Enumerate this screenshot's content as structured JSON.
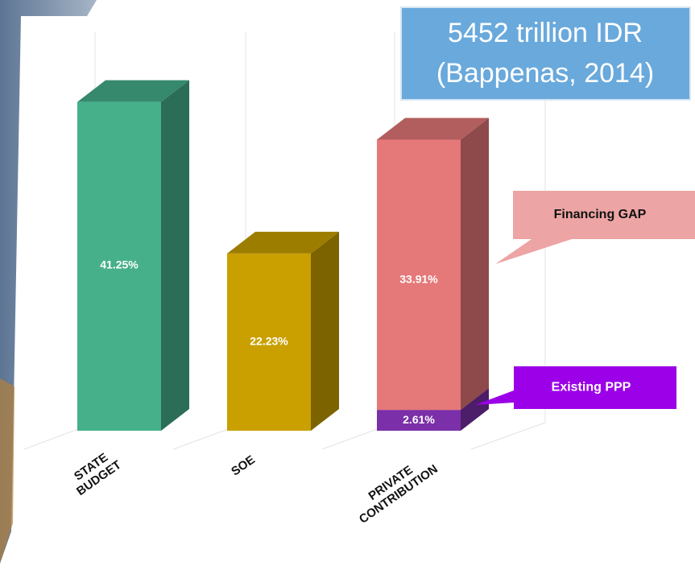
{
  "chart_data": {
    "type": "bar3d",
    "title": "5452 trillion IDR",
    "subtitle": "(Bappenas, 2014)",
    "categories": [
      "STATE BUDGET",
      "SOE",
      "PRIVATE CONTRIBUTION"
    ],
    "series": [
      {
        "colors": [
          "#45b08a",
          "#c9a000",
          null
        ],
        "values": [
          41.25,
          22.23,
          null
        ],
        "value_labels": [
          "41.25%",
          "22.23%",
          null
        ]
      },
      {
        "name": "Existing PPP",
        "color": "#7b2fa8",
        "values": [
          null,
          null,
          2.61
        ],
        "value_labels": [
          null,
          null,
          "2.61%"
        ]
      },
      {
        "name": "Financing GAP",
        "color": "#e57878",
        "values": [
          null,
          null,
          33.91
        ],
        "value_labels": [
          null,
          null,
          "33.91%"
        ]
      }
    ]
  }
}
